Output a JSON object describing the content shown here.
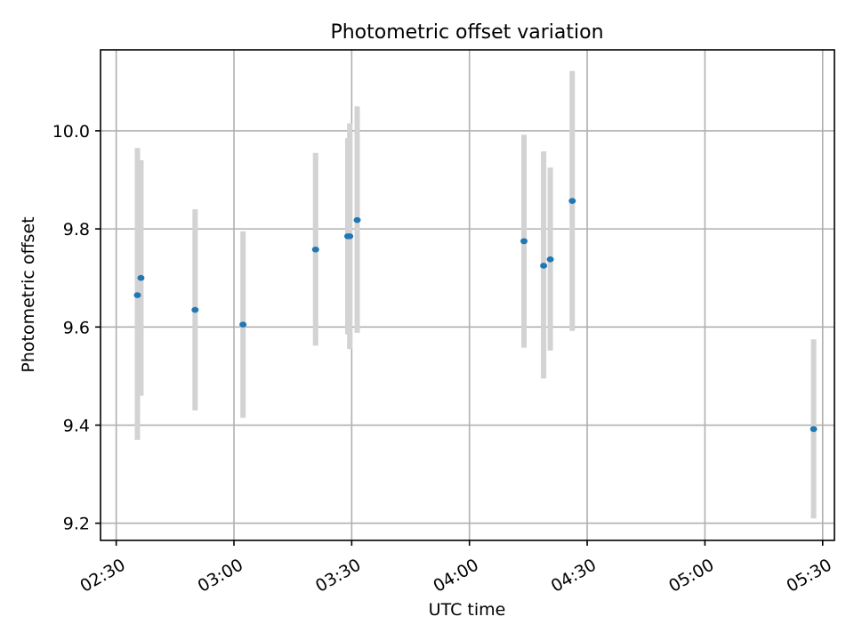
{
  "chart_data": {
    "type": "scatter",
    "title": "Photometric offset variation",
    "xlabel": "UTC time",
    "ylabel": "Photometric offset",
    "x_type": "time",
    "xlim": [
      "02:26",
      "05:33"
    ],
    "ylim": [
      9.165,
      10.165
    ],
    "x_ticks": [
      "02:30",
      "03:00",
      "03:30",
      "04:00",
      "04:30",
      "05:00",
      "05:30"
    ],
    "y_ticks": [
      9.2,
      9.4,
      9.6,
      9.8,
      10.0
    ],
    "y_tick_labels": [
      "9.2",
      "9.4",
      "9.6",
      "9.8",
      "10.0"
    ],
    "grid": true,
    "colors": {
      "points": "#1f77b4",
      "error_bars": "#d3d3d3",
      "grid": "#b0b0b0"
    },
    "series": [
      {
        "points": [
          {
            "x": "02:35:24",
            "y": 9.665,
            "y_low": 9.37,
            "y_high": 9.965
          },
          {
            "x": "02:36:18",
            "y": 9.7,
            "y_low": 9.46,
            "y_high": 9.94
          },
          {
            "x": "02:50:06",
            "y": 9.635,
            "y_low": 9.43,
            "y_high": 9.84
          },
          {
            "x": "03:02:18",
            "y": 9.605,
            "y_low": 9.415,
            "y_high": 9.795
          },
          {
            "x": "03:20:48",
            "y": 9.758,
            "y_low": 9.562,
            "y_high": 9.955
          },
          {
            "x": "03:29:00",
            "y": 9.785,
            "y_low": 9.585,
            "y_high": 9.985
          },
          {
            "x": "03:29:30",
            "y": 9.785,
            "y_low": 9.555,
            "y_high": 10.015
          },
          {
            "x": "03:31:24",
            "y": 9.818,
            "y_low": 9.588,
            "y_high": 10.05
          },
          {
            "x": "04:13:54",
            "y": 9.775,
            "y_low": 9.558,
            "y_high": 9.992
          },
          {
            "x": "04:18:54",
            "y": 9.725,
            "y_low": 9.495,
            "y_high": 9.958
          },
          {
            "x": "04:20:36",
            "y": 9.738,
            "y_low": 9.552,
            "y_high": 9.925
          },
          {
            "x": "04:26:12",
            "y": 9.857,
            "y_low": 9.592,
            "y_high": 10.122
          },
          {
            "x": "05:27:42",
            "y": 9.392,
            "y_low": 9.21,
            "y_high": 9.575
          }
        ]
      }
    ]
  }
}
